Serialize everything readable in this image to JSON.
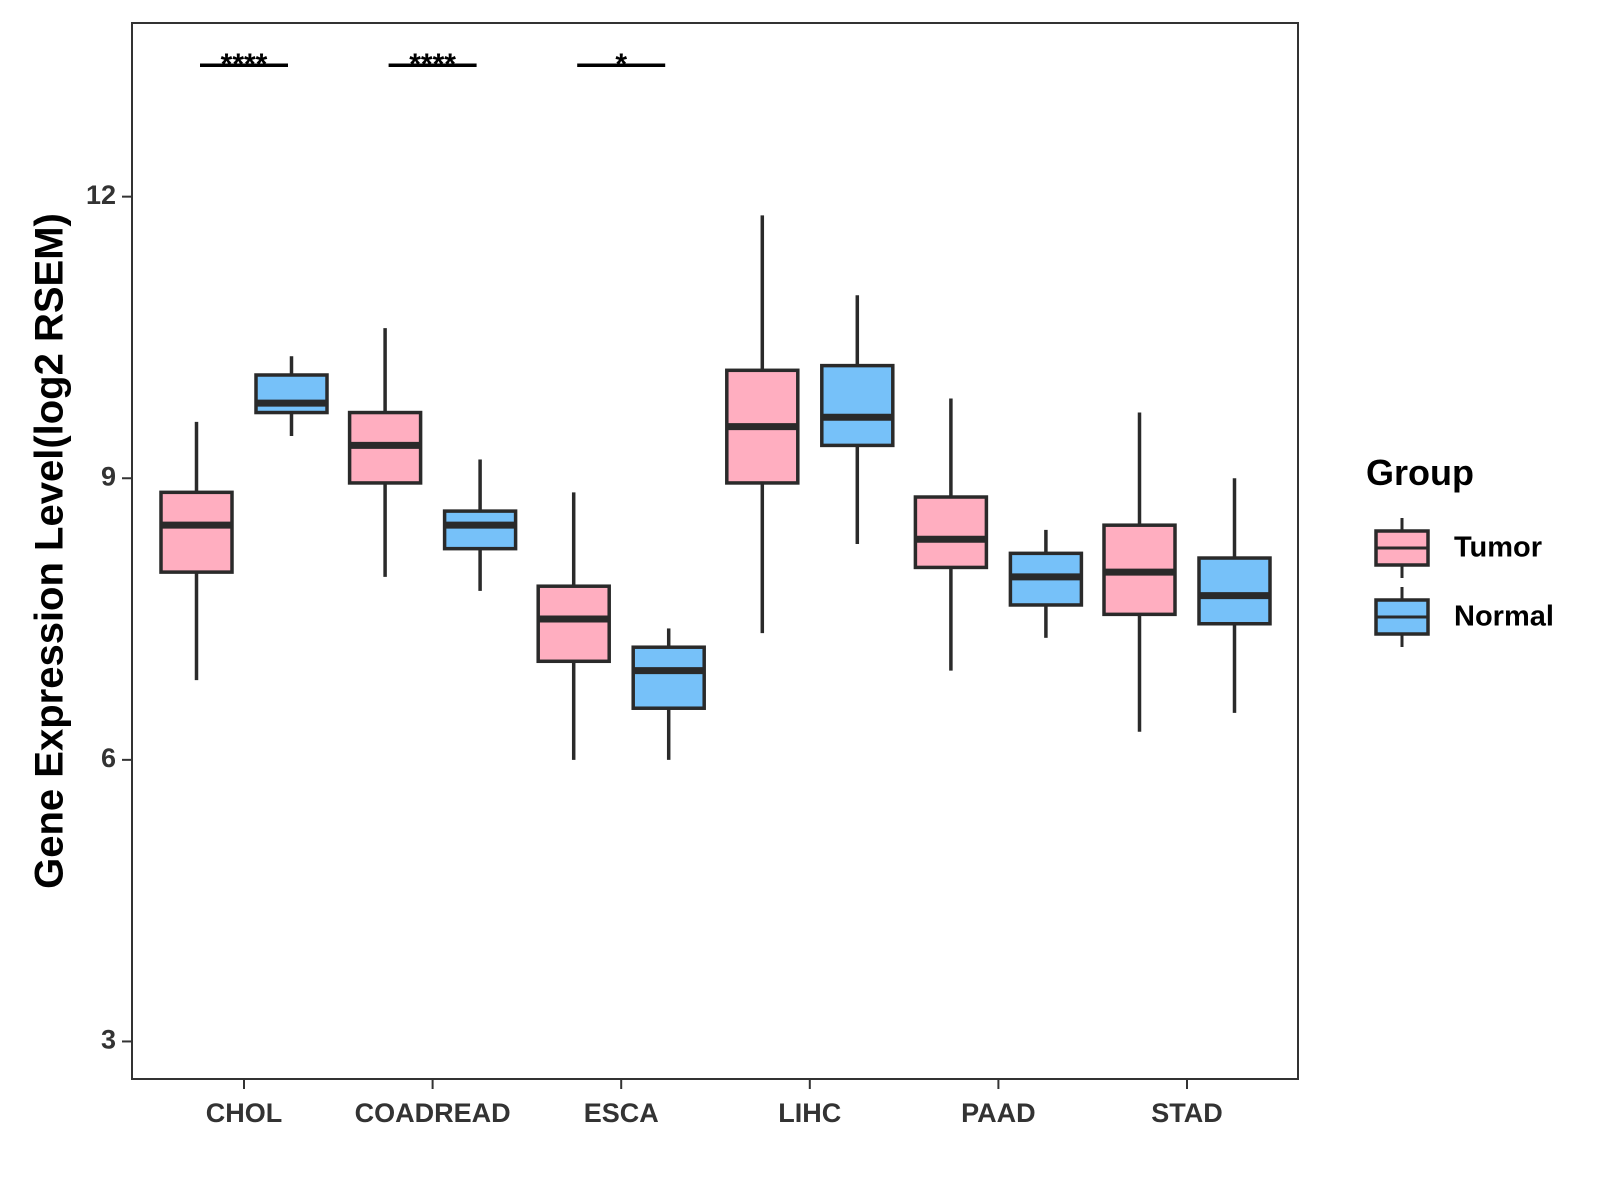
{
  "chart_data": {
    "type": "boxplot",
    "title": "",
    "xlabel": "",
    "ylabel": "Gene Expression Level(log2 RSEM)",
    "ylim": [
      2.6,
      13.85
    ],
    "yticks": [
      3,
      6,
      9,
      12
    ],
    "grid": false,
    "legend_position": "right",
    "legend_title": "Group",
    "categories": [
      "CHOL",
      "COADREAD",
      "ESCA",
      "LIHC",
      "PAAD",
      "STAD"
    ],
    "series": [
      {
        "name": "Tumor",
        "color": "#FFAEC0",
        "boxes": [
          {
            "category": "CHOL",
            "min": 6.85,
            "q1": 8.0,
            "median": 8.5,
            "q3": 8.85,
            "max": 9.6
          },
          {
            "category": "COADREAD",
            "min": 7.95,
            "q1": 8.95,
            "median": 9.35,
            "q3": 9.7,
            "max": 10.6
          },
          {
            "category": "ESCA",
            "min": 6.0,
            "q1": 7.05,
            "median": 7.5,
            "q3": 7.85,
            "max": 8.85
          },
          {
            "category": "LIHC",
            "min": 7.35,
            "q1": 8.95,
            "median": 9.55,
            "q3": 10.15,
            "max": 11.8
          },
          {
            "category": "PAAD",
            "min": 6.95,
            "q1": 8.05,
            "median": 8.35,
            "q3": 8.8,
            "max": 9.85
          },
          {
            "category": "STAD",
            "min": 6.3,
            "q1": 7.55,
            "median": 8.0,
            "q3": 8.5,
            "max": 9.7
          }
        ]
      },
      {
        "name": "Normal",
        "color": "#76C1F9",
        "boxes": [
          {
            "category": "CHOL",
            "min": 9.45,
            "q1": 9.7,
            "median": 9.8,
            "q3": 10.1,
            "max": 10.3
          },
          {
            "category": "COADREAD",
            "min": 7.8,
            "q1": 8.25,
            "median": 8.5,
            "q3": 8.65,
            "max": 9.2
          },
          {
            "category": "ESCA",
            "min": 6.0,
            "q1": 6.55,
            "median": 6.95,
            "q3": 7.2,
            "max": 7.4
          },
          {
            "category": "LIHC",
            "min": 8.3,
            "q1": 9.35,
            "median": 9.65,
            "q3": 10.2,
            "max": 10.95
          },
          {
            "category": "PAAD",
            "min": 7.3,
            "q1": 7.65,
            "median": 7.95,
            "q3": 8.2,
            "max": 8.45
          },
          {
            "category": "STAD",
            "min": 6.5,
            "q1": 7.45,
            "median": 7.75,
            "q3": 8.15,
            "max": 9.0
          }
        ]
      }
    ],
    "significance": [
      {
        "category": "CHOL",
        "label": "****",
        "y": 13.4
      },
      {
        "category": "COADREAD",
        "label": "****",
        "y": 13.4
      },
      {
        "category": "ESCA",
        "label": "*",
        "y": 13.4
      }
    ]
  }
}
